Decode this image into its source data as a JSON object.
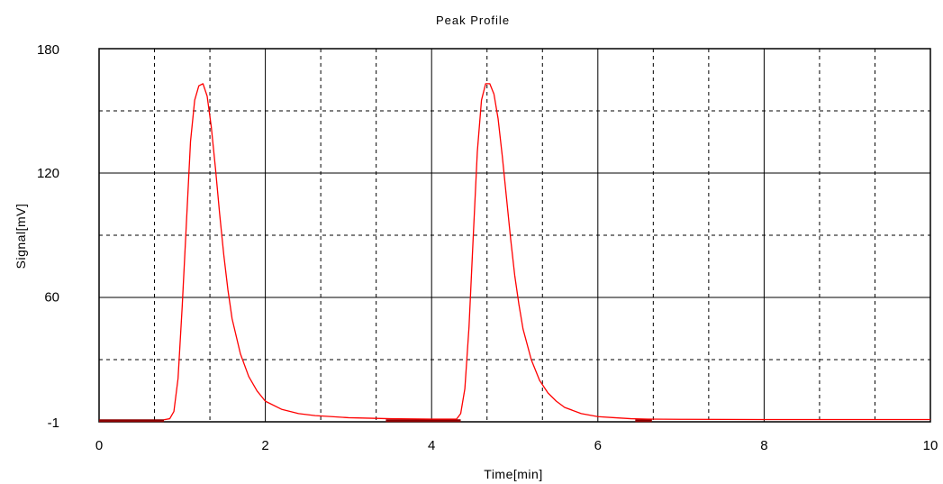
{
  "chart_data": {
    "type": "line",
    "title": "Peak Profile",
    "xlabel": "Time[min]",
    "ylabel": "Signal[mV]",
    "xlim": [
      0,
      10
    ],
    "ylim": [
      -1,
      180
    ],
    "x_ticks": [
      0,
      2,
      4,
      6,
      8,
      10
    ],
    "y_ticks": [
      -1,
      60,
      120,
      180
    ],
    "x_tick_labels": [
      "0",
      "2",
      "4",
      "6",
      "8",
      "10"
    ],
    "y_tick_labels": [
      "-1",
      "60",
      "120",
      "180"
    ],
    "grid": true,
    "colors": {
      "series": "#ff0000",
      "baseline": "#8b0000",
      "grid": "#000000"
    },
    "series": [
      {
        "color": "#ff0000",
        "x": [
          0.78,
          0.85,
          0.9,
          0.95,
          1.0,
          1.05,
          1.1,
          1.15,
          1.2,
          1.25,
          1.3,
          1.35,
          1.4,
          1.45,
          1.5,
          1.55,
          1.6,
          1.7,
          1.8,
          1.9,
          2.0,
          2.2,
          2.4,
          2.6,
          2.8,
          3.0,
          3.5,
          4.0,
          4.3,
          4.35,
          4.4,
          4.45,
          4.5,
          4.55,
          4.6,
          4.65,
          4.7,
          4.75,
          4.8,
          4.85,
          4.9,
          4.95,
          5.0,
          5.05,
          5.1,
          5.2,
          5.3,
          5.4,
          5.5,
          5.6,
          5.8,
          6.0,
          6.2,
          6.4,
          6.6,
          7.0,
          8.0,
          10.0
        ],
        "y": [
          0,
          0.5,
          4,
          20,
          55,
          95,
          135,
          155,
          162,
          163,
          157,
          142,
          122,
          100,
          80,
          63,
          49,
          32,
          21,
          14,
          9,
          5,
          3,
          2,
          1.5,
          1,
          0.5,
          0.3,
          0.3,
          3,
          15,
          45,
          88,
          130,
          155,
          163,
          163,
          158,
          146,
          128,
          108,
          88,
          70,
          56,
          44,
          29,
          19,
          13,
          9,
          6,
          3,
          1.5,
          1,
          0.5,
          0.3,
          0.2,
          0.1,
          0.1
        ]
      }
    ],
    "baseline_segments": [
      {
        "x": [
          0.0,
          0.78
        ],
        "y": [
          0,
          0
        ]
      },
      {
        "x": [
          3.45,
          4.35
        ],
        "y": [
          0,
          0
        ]
      },
      {
        "x": [
          6.45,
          6.65
        ],
        "y": [
          0,
          0
        ]
      }
    ]
  }
}
